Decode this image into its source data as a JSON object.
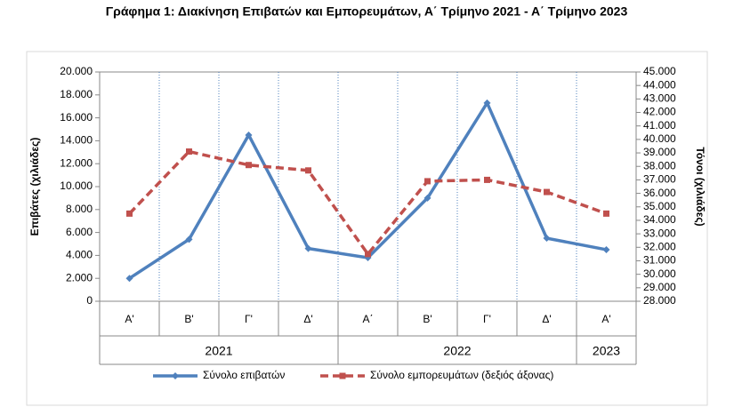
{
  "chart_data": {
    "type": "line",
    "title": "Γράφημα 1: Διακίνηση Επιβατών και Εμπορευμάτων, Α΄ Τρίμηνο 2021 - Α΄ Τρίμηνο 2023",
    "category_groups": [
      {
        "label": "2021",
        "categories": [
          "Α'",
          "Β'",
          "Γ'",
          "Δ'"
        ]
      },
      {
        "label": "2022",
        "categories": [
          "Α΄",
          "Β'",
          "Γ'",
          "Δ'"
        ]
      },
      {
        "label": "2023",
        "categories": [
          "Α'"
        ]
      }
    ],
    "y_label": "Επιβάτες  (χιλιάδες)",
    "y2_label": "Τόνοι  (χιλιάδες)",
    "ylim": [
      0,
      20000
    ],
    "yticks": [
      0,
      {
        "value": 2000,
        "label": "2.000"
      },
      {
        "value": 4000,
        "label": "4.000"
      },
      {
        "value": 6000,
        "label": "6.000"
      },
      {
        "value": 8000,
        "label": "8.000"
      },
      {
        "value": 10000,
        "label": "10.000"
      },
      {
        "value": 12000,
        "label": "12.000"
      },
      {
        "value": 14000,
        "label": "14.000"
      },
      {
        "value": 16000,
        "label": "16.000"
      },
      {
        "value": 18000,
        "label": "18.000"
      },
      {
        "value": 20000,
        "label": "20.000"
      }
    ],
    "y2lim": [
      28000,
      45000
    ],
    "y2ticks": [
      {
        "value": 28000,
        "label": "28.000"
      },
      {
        "value": 29000,
        "label": "29.000"
      },
      {
        "value": 30000,
        "label": "30.000"
      },
      {
        "value": 31000,
        "label": "31.000"
      },
      {
        "value": 32000,
        "label": "32.000"
      },
      {
        "value": 33000,
        "label": "33.000"
      },
      {
        "value": 34000,
        "label": "34.000"
      },
      {
        "value": 35000,
        "label": "35.000"
      },
      {
        "value": 36000,
        "label": "36.000"
      },
      {
        "value": 37000,
        "label": "37.000"
      },
      {
        "value": 38000,
        "label": "38.000"
      },
      {
        "value": 39000,
        "label": "39.000"
      },
      {
        "value": 40000,
        "label": "40.000"
      },
      {
        "value": 41000,
        "label": "41.000"
      },
      {
        "value": 42000,
        "label": "42.000"
      },
      {
        "value": 43000,
        "label": "43.000"
      },
      {
        "value": 44000,
        "label": "44.000"
      },
      {
        "value": 45000,
        "label": "45.000"
      }
    ],
    "series": [
      {
        "name": "Σύνολο επιβατών",
        "color": "#4f81bd",
        "marker": "diamond",
        "dashed": false,
        "values": [
          2000,
          5400,
          14500,
          4600,
          3800,
          9000,
          17300,
          5500,
          4500
        ]
      },
      {
        "name": "Σύνολο εμπορευμάτων (δεξιός άξονας)",
        "color": "#c0504d",
        "marker": "square",
        "dashed": true,
        "axis": "y2",
        "values": [
          34500,
          39100,
          38100,
          37700,
          31500,
          36900,
          37000,
          36100,
          34500
        ]
      }
    ]
  }
}
